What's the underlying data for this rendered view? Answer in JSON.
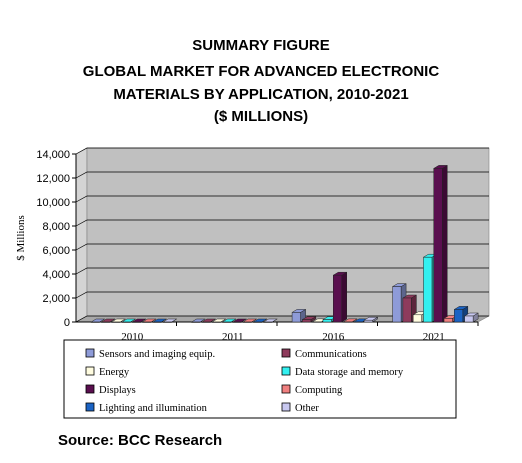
{
  "figure": {
    "title_lines": [
      "SUMMARY FIGURE",
      "GLOBAL MARKET FOR ADVANCED ELECTRONIC",
      "MATERIALS BY APPLICATION, 2010-2021",
      "($ MILLIONS)"
    ],
    "source": "Source: BCC Research"
  },
  "chart_data": {
    "type": "bar",
    "style": "3d-clustered",
    "ylabel": "$ Millions",
    "xlabel": "",
    "ylim": [
      0,
      14000
    ],
    "yticks": [
      0,
      2000,
      4000,
      6000,
      8000,
      10000,
      12000,
      14000
    ],
    "ytick_labels": [
      "0",
      "2,000",
      "4,000",
      "6,000",
      "8,000",
      "10,000",
      "12,000",
      "14,000"
    ],
    "categories": [
      "2010",
      "2011",
      "2016",
      "2021"
    ],
    "grid": true,
    "legend_position": "bottom",
    "series": [
      {
        "name": "Sensors and imaging equip.",
        "color": "#8e9bd8",
        "values": [
          0,
          0,
          800,
          2950
        ]
      },
      {
        "name": "Communications",
        "color": "#8e3b5c",
        "values": [
          0,
          0,
          200,
          2000
        ]
      },
      {
        "name": "Energy",
        "color": "#fffce0",
        "values": [
          0,
          0,
          10,
          600
        ]
      },
      {
        "name": "Data storage and memory",
        "color": "#33f0f0",
        "values": [
          0,
          0,
          200,
          5400
        ]
      },
      {
        "name": "Displays",
        "color": "#5a0f4f",
        "values": [
          0,
          0,
          3900,
          12800
        ]
      },
      {
        "name": "Computing",
        "color": "#f08080",
        "values": [
          0,
          0,
          10,
          300
        ]
      },
      {
        "name": "Lighting and illumination",
        "color": "#1b63c4",
        "values": [
          0,
          0,
          10,
          1050
        ]
      },
      {
        "name": "Other",
        "color": "#c8c8f0",
        "values": [
          0,
          0,
          150,
          500
        ]
      }
    ]
  }
}
